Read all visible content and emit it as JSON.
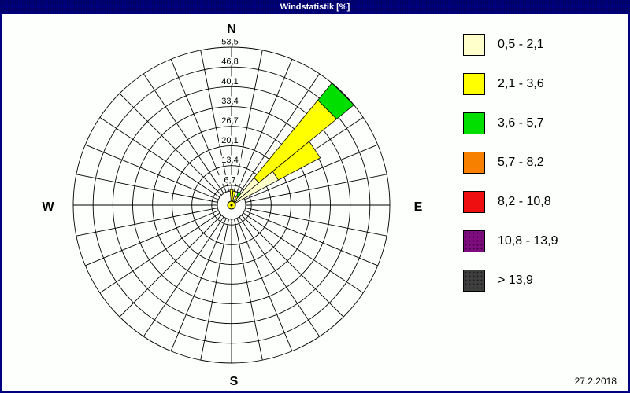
{
  "window": {
    "title": "Windstatistik [%]",
    "date": "27.2.2018"
  },
  "chart_data": {
    "type": "windrose",
    "title": "Windstatistik [%]",
    "units": "%",
    "sector_count": 32,
    "sector_width_deg": 11.25,
    "max_value_pct": 53.5,
    "ring_values": [
      6.7,
      13.4,
      20.1,
      26.7,
      33.4,
      40.1,
      46.8,
      53.5
    ],
    "ring_labels": [
      "6,7",
      "13,4",
      "20,1",
      "26,7",
      "33,4",
      "40,1",
      "46,8",
      "53,5"
    ],
    "compass": {
      "north": "N",
      "east": "E",
      "south": "S",
      "west": "W"
    },
    "grid": {
      "shown": true,
      "line_color": "#000000"
    },
    "speed_classes": [
      {
        "label": "0,5 - 2,1",
        "color": "#FFFFCC",
        "textured": false
      },
      {
        "label": "2,1 - 3,6",
        "color": "#FFFF00",
        "textured": false
      },
      {
        "label": "3,6 - 5,7",
        "color": "#00DF00",
        "textured": false
      },
      {
        "label": "5,7 - 8,2",
        "color": "#F88000",
        "textured": false
      },
      {
        "label": "8,2 - 10,8",
        "color": "#EE1010",
        "textured": false
      },
      {
        "label": "10,8 - 13,9",
        "color": "#7E0C7E",
        "textured": true
      },
      {
        "label": "> 13,9",
        "color": "#3F3F3F",
        "textured": true
      }
    ],
    "legend_position": "right",
    "wedges": [
      {
        "direction_deg": 0,
        "segments": [
          {
            "class_index": 0,
            "from_pct": 0,
            "to_pct": 1.0
          },
          {
            "class_index": 1,
            "from_pct": 1.0,
            "to_pct": 5.3
          }
        ]
      },
      {
        "direction_deg": 11.25,
        "segments": [
          {
            "class_index": 0,
            "from_pct": 0,
            "to_pct": 1.0
          },
          {
            "class_index": 1,
            "from_pct": 1.0,
            "to_pct": 4.8
          }
        ]
      },
      {
        "direction_deg": 33.75,
        "segments": [
          {
            "class_index": 0,
            "from_pct": 0,
            "to_pct": 1.0
          },
          {
            "class_index": 1,
            "from_pct": 1.0,
            "to_pct": 3.5
          },
          {
            "class_index": 2,
            "from_pct": 3.5,
            "to_pct": 5.1
          }
        ]
      },
      {
        "direction_deg": 45,
        "segments": [
          {
            "class_index": 0,
            "from_pct": 0,
            "to_pct": 12.0
          },
          {
            "class_index": 1,
            "from_pct": 12.0,
            "to_pct": 46.0
          },
          {
            "class_index": 2,
            "from_pct": 46.0,
            "to_pct": 53.5
          }
        ]
      },
      {
        "direction_deg": 56.25,
        "segments": [
          {
            "class_index": 0,
            "from_pct": 0,
            "to_pct": 18.0
          },
          {
            "class_index": 1,
            "from_pct": 18.0,
            "to_pct": 34.0
          }
        ]
      }
    ],
    "calm_marker": {
      "color": "#FFFF00"
    }
  }
}
